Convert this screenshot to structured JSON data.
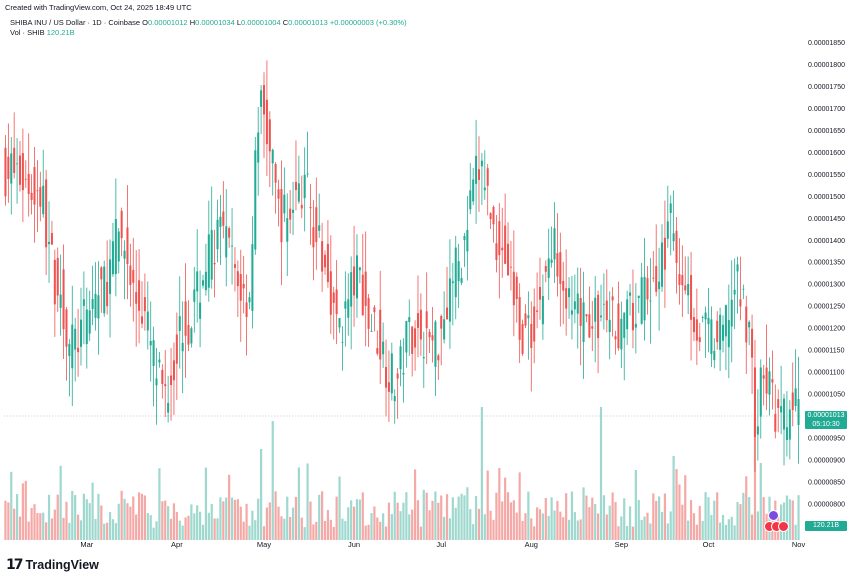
{
  "caption": "Created with TradingView.com, Oct 24, 2025 18:49 UTC",
  "legend": {
    "symbol": "SHIBA INU / US Dollar · 1D · Coinbase",
    "o_label": "O",
    "o_value": "0.00001012",
    "h_label": "H",
    "h_value": "0.00001034",
    "l_label": "L",
    "l_value": "0.00001004",
    "c_label": "C",
    "c_value": "0.00001013",
    "change": "+0.00000003 (+0.30%)",
    "vol_label": "Vol · SHIB",
    "vol_value": "120.21B"
  },
  "price_tag": {
    "price": "0.00001013",
    "countdown": "05:10:30"
  },
  "volume_tag": "120.21B",
  "brand": {
    "logo": "17",
    "name": "TradingView"
  },
  "colors": {
    "up": "#22ab94",
    "down": "#ef5350",
    "up_vol": "#9fd8ce",
    "down_vol": "#f5a9a6",
    "grid": "#f0f3fa",
    "text": "#131722"
  },
  "chart_data": {
    "type": "candlestick",
    "title": "SHIBA INU / US Dollar · 1D · Coinbase",
    "x_tick_labels": [
      "Mar",
      "Apr",
      "May",
      "Jun",
      "Jul",
      "Aug",
      "Sep",
      "Oct",
      "Nov"
    ],
    "x_ticks_index": [
      28,
      59,
      89,
      120,
      150,
      181,
      212,
      242,
      273
    ],
    "y_tick_labels": [
      "0.00001850",
      "0.00001800",
      "0.00001750",
      "0.00001700",
      "0.00001650",
      "0.00001600",
      "0.00001550",
      "0.00001500",
      "0.00001450",
      "0.00001400",
      "0.00001350",
      "0.00001300",
      "0.00001250",
      "0.00001200",
      "0.00001150",
      "0.00001100",
      "0.00001050",
      "0.00001000",
      "0.00000950",
      "0.00000900",
      "0.00000850",
      "0.00000800"
    ],
    "ylim": [
      7.7e-06,
      1.89e-05
    ],
    "key_levels": [
      {
        "x": 2,
        "y": 1.56e-05
      },
      {
        "x": 12,
        "y": 1.51e-05
      },
      {
        "x": 18,
        "y": 1.31e-05
      },
      {
        "x": 23,
        "y": 1.16e-05
      },
      {
        "x": 34,
        "y": 1.29e-05
      },
      {
        "x": 40,
        "y": 1.41e-05
      },
      {
        "x": 46,
        "y": 1.26e-05
      },
      {
        "x": 55,
        "y": 1.06e-05
      },
      {
        "x": 62,
        "y": 1.21e-05
      },
      {
        "x": 74,
        "y": 1.41e-05
      },
      {
        "x": 84,
        "y": 1.27e-05
      },
      {
        "x": 88,
        "y": 1.7e-05
      },
      {
        "x": 96,
        "y": 1.45e-05
      },
      {
        "x": 103,
        "y": 1.52e-05
      },
      {
        "x": 111,
        "y": 1.33e-05
      },
      {
        "x": 115,
        "y": 1.2e-05
      },
      {
        "x": 122,
        "y": 1.32e-05
      },
      {
        "x": 126,
        "y": 1.21e-05
      },
      {
        "x": 135,
        "y": 1.08e-05
      },
      {
        "x": 140,
        "y": 1.2e-05
      },
      {
        "x": 148,
        "y": 1.17e-05
      },
      {
        "x": 156,
        "y": 1.34e-05
      },
      {
        "x": 164,
        "y": 1.56e-05
      },
      {
        "x": 170,
        "y": 1.4e-05
      },
      {
        "x": 180,
        "y": 1.18e-05
      },
      {
        "x": 190,
        "y": 1.38e-05
      },
      {
        "x": 196,
        "y": 1.22e-05
      },
      {
        "x": 206,
        "y": 1.22e-05
      },
      {
        "x": 213,
        "y": 1.21e-05
      },
      {
        "x": 225,
        "y": 1.31e-05
      },
      {
        "x": 229,
        "y": 1.43e-05
      },
      {
        "x": 233,
        "y": 1.33e-05
      },
      {
        "x": 240,
        "y": 1.19e-05
      },
      {
        "x": 246,
        "y": 1.17e-05
      },
      {
        "x": 252,
        "y": 1.29e-05
      },
      {
        "x": 257,
        "y": 1.21e-05
      },
      {
        "x": 258,
        "y": 9.8e-06
      },
      {
        "x": 262,
        "y": 1.09e-05
      },
      {
        "x": 267,
        "y": 9.8e-06
      },
      {
        "x": 272,
        "y": 1.013e-05
      }
    ],
    "volume_spikes": [
      {
        "x": 40,
        "y": 0.95
      },
      {
        "x": 53,
        "y": 0.95
      },
      {
        "x": 88,
        "y": 0.65
      },
      {
        "x": 92,
        "y": 0.85
      },
      {
        "x": 164,
        "y": 0.95
      },
      {
        "x": 205,
        "y": 0.95
      },
      {
        "x": 230,
        "y": 0.6
      },
      {
        "x": 258,
        "y": 0.9
      },
      {
        "x": 260,
        "y": 0.55
      }
    ],
    "volume_base_level": 0.22,
    "last_price": 1.013e-05,
    "grid": false,
    "legend_position": "top-left"
  }
}
